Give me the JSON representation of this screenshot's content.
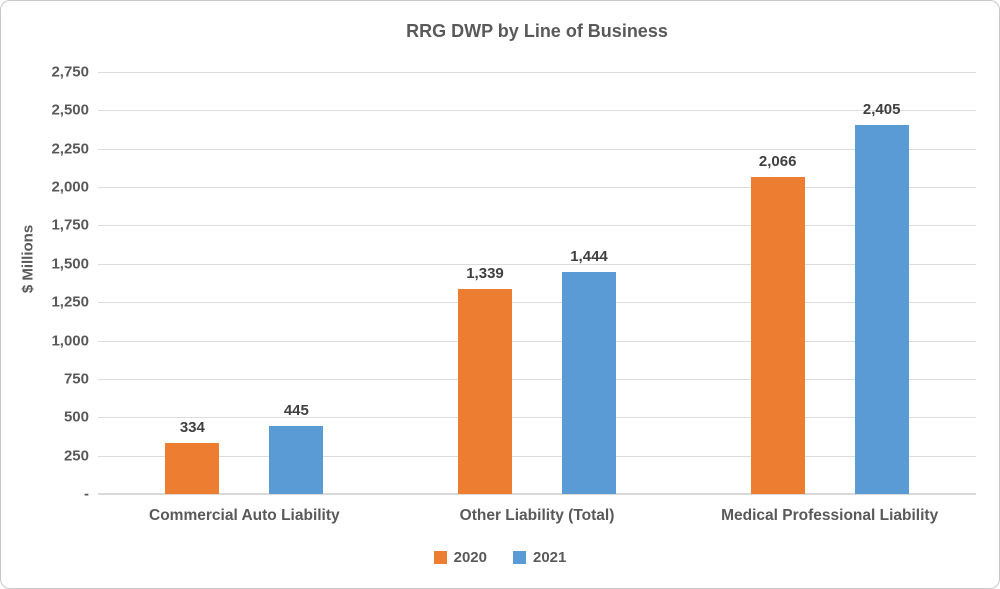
{
  "chart_data": {
    "type": "bar",
    "title": "RRG DWP by Line of Business",
    "ylabel": "$ Millions",
    "xlabel": "",
    "categories": [
      "Commercial Auto Liability",
      "Other Liability (Total)",
      "Medical Professional Liability"
    ],
    "series": [
      {
        "name": "2020",
        "color": "#ED7D31",
        "values": [
          334,
          1339,
          2066
        ],
        "labels": [
          "334",
          "1,339",
          "2,066"
        ]
      },
      {
        "name": "2021",
        "color": "#5B9BD5",
        "values": [
          445,
          1444,
          2405
        ],
        "labels": [
          "445",
          "1,444",
          "2,405"
        ]
      }
    ],
    "ylim": [
      0,
      2750
    ],
    "y_tick_step": 250,
    "y_ticks_bottom_to_top": [
      "-",
      "250",
      "500",
      "750",
      "1,000",
      "1,250",
      "1,500",
      "1,750",
      "2,000",
      "2,250",
      "2,500",
      "2,750"
    ],
    "grid": true,
    "legend_position": "bottom",
    "colors": {
      "grid_line": "#DCDCDC",
      "axis_line": "#D9D9D9",
      "title_text": "#595959",
      "data_label_text": "#404040"
    }
  }
}
